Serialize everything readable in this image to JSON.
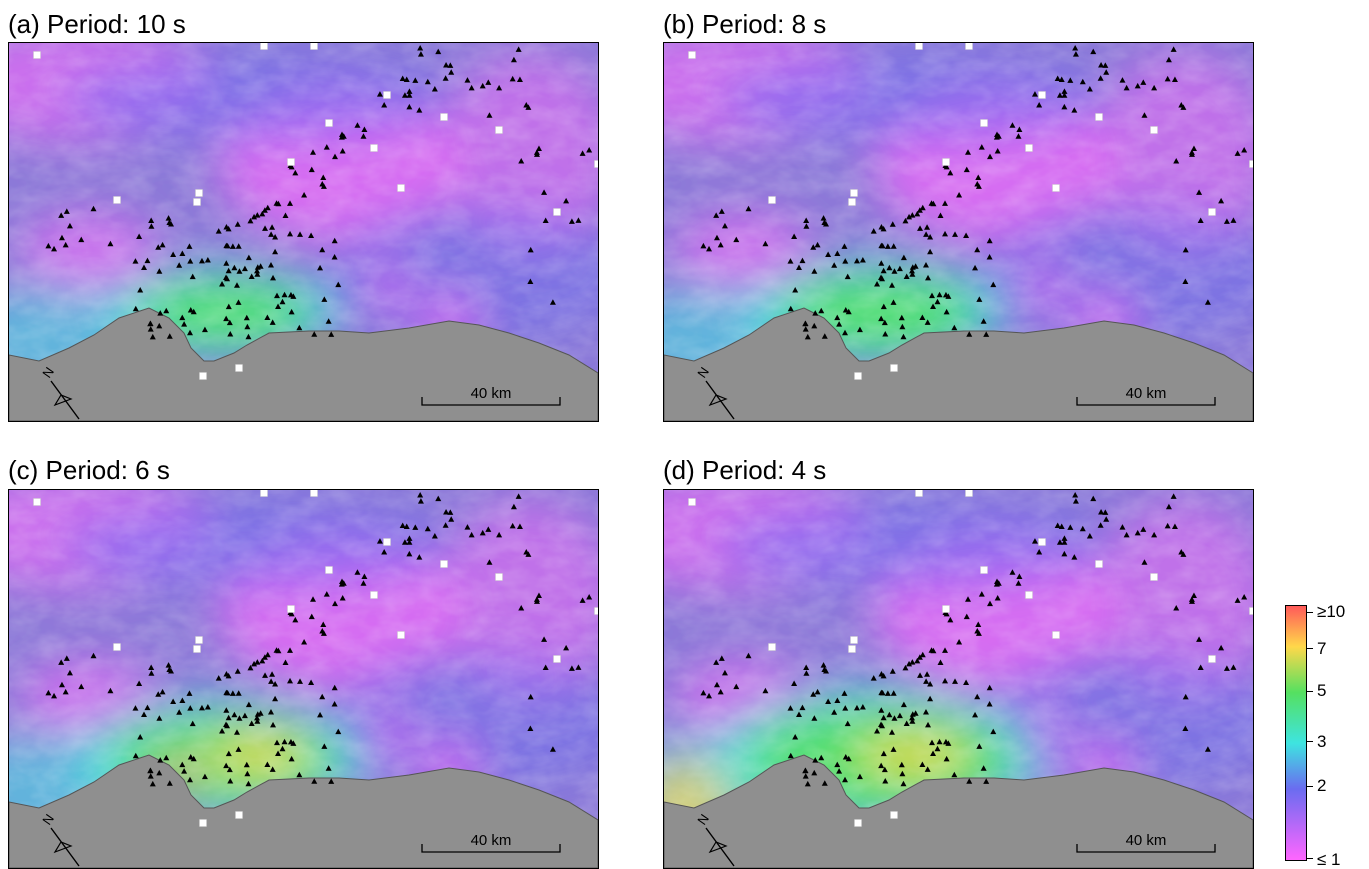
{
  "panels": [
    {
      "title": "(a) Period: 10 s",
      "high_zone": "green"
    },
    {
      "title": "(b) Period: 8 s",
      "high_zone": "green"
    },
    {
      "title": "(c) Period: 6 s",
      "high_zone": "yellow"
    },
    {
      "title": "(d) Period: 4 s",
      "high_zone": "yellow"
    }
  ],
  "scale_bar_label": "40 km",
  "north_arrow_label": "N",
  "colorbar": {
    "labels": [
      "≥10",
      "7",
      "5",
      "3",
      "2",
      "≤ 1"
    ],
    "colors": [
      "#ff5a5a",
      "#ffd84a",
      "#55e060",
      "#3ee4e0",
      "#6a6cf0",
      "#ff66ff"
    ]
  },
  "colors": {
    "land": "#8f8f8f",
    "background_low": "#8c7ad8",
    "station_marker": "#000000",
    "site_marker": "#ffffff"
  },
  "legend_icons": [
    "station-triangle-icon",
    "site-square-icon",
    "north-arrow-icon"
  ]
}
